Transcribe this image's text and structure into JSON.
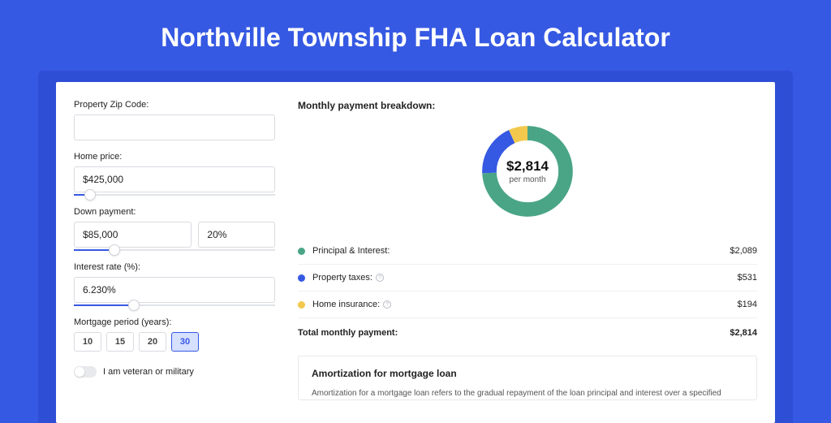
{
  "colors": {
    "page_bg": "#3659e3",
    "shadow_bg": "#2f4ed6",
    "pi_color": "#4aa586",
    "tax_color": "#3659e3",
    "ins_color": "#f2c94c",
    "input_border": "#d9dbe0"
  },
  "title": "Northville Township FHA Loan Calculator",
  "form": {
    "zip": {
      "label": "Property Zip Code:",
      "value": ""
    },
    "price": {
      "label": "Home price:",
      "value": "$425,000",
      "slider_pct": 8
    },
    "down": {
      "label": "Down payment:",
      "value": "$85,000",
      "pct_value": "20%",
      "slider_pct": 20
    },
    "rate": {
      "label": "Interest rate (%):",
      "value": "6.230%",
      "slider_pct": 30
    },
    "period": {
      "label": "Mortgage period (years):",
      "options": [
        "10",
        "15",
        "20",
        "30"
      ],
      "selected": "30"
    },
    "veteran": {
      "label": "I am veteran or military",
      "on": false
    }
  },
  "breakdown": {
    "title": "Monthly payment breakdown:",
    "center_value": "$2,814",
    "center_sub": "per month",
    "items": [
      {
        "label": "Principal & Interest:",
        "value": "$2,089",
        "pct": 74.2,
        "info": false
      },
      {
        "label": "Property taxes:",
        "value": "$531",
        "pct": 18.9,
        "info": true
      },
      {
        "label": "Home insurance:",
        "value": "$194",
        "pct": 6.9,
        "info": true
      }
    ],
    "total": {
      "label": "Total monthly payment:",
      "value": "$2,814"
    }
  },
  "amort": {
    "title": "Amortization for mortgage loan",
    "text": "Amortization for a mortgage loan refers to the gradual repayment of the loan principal and interest over a specified"
  }
}
